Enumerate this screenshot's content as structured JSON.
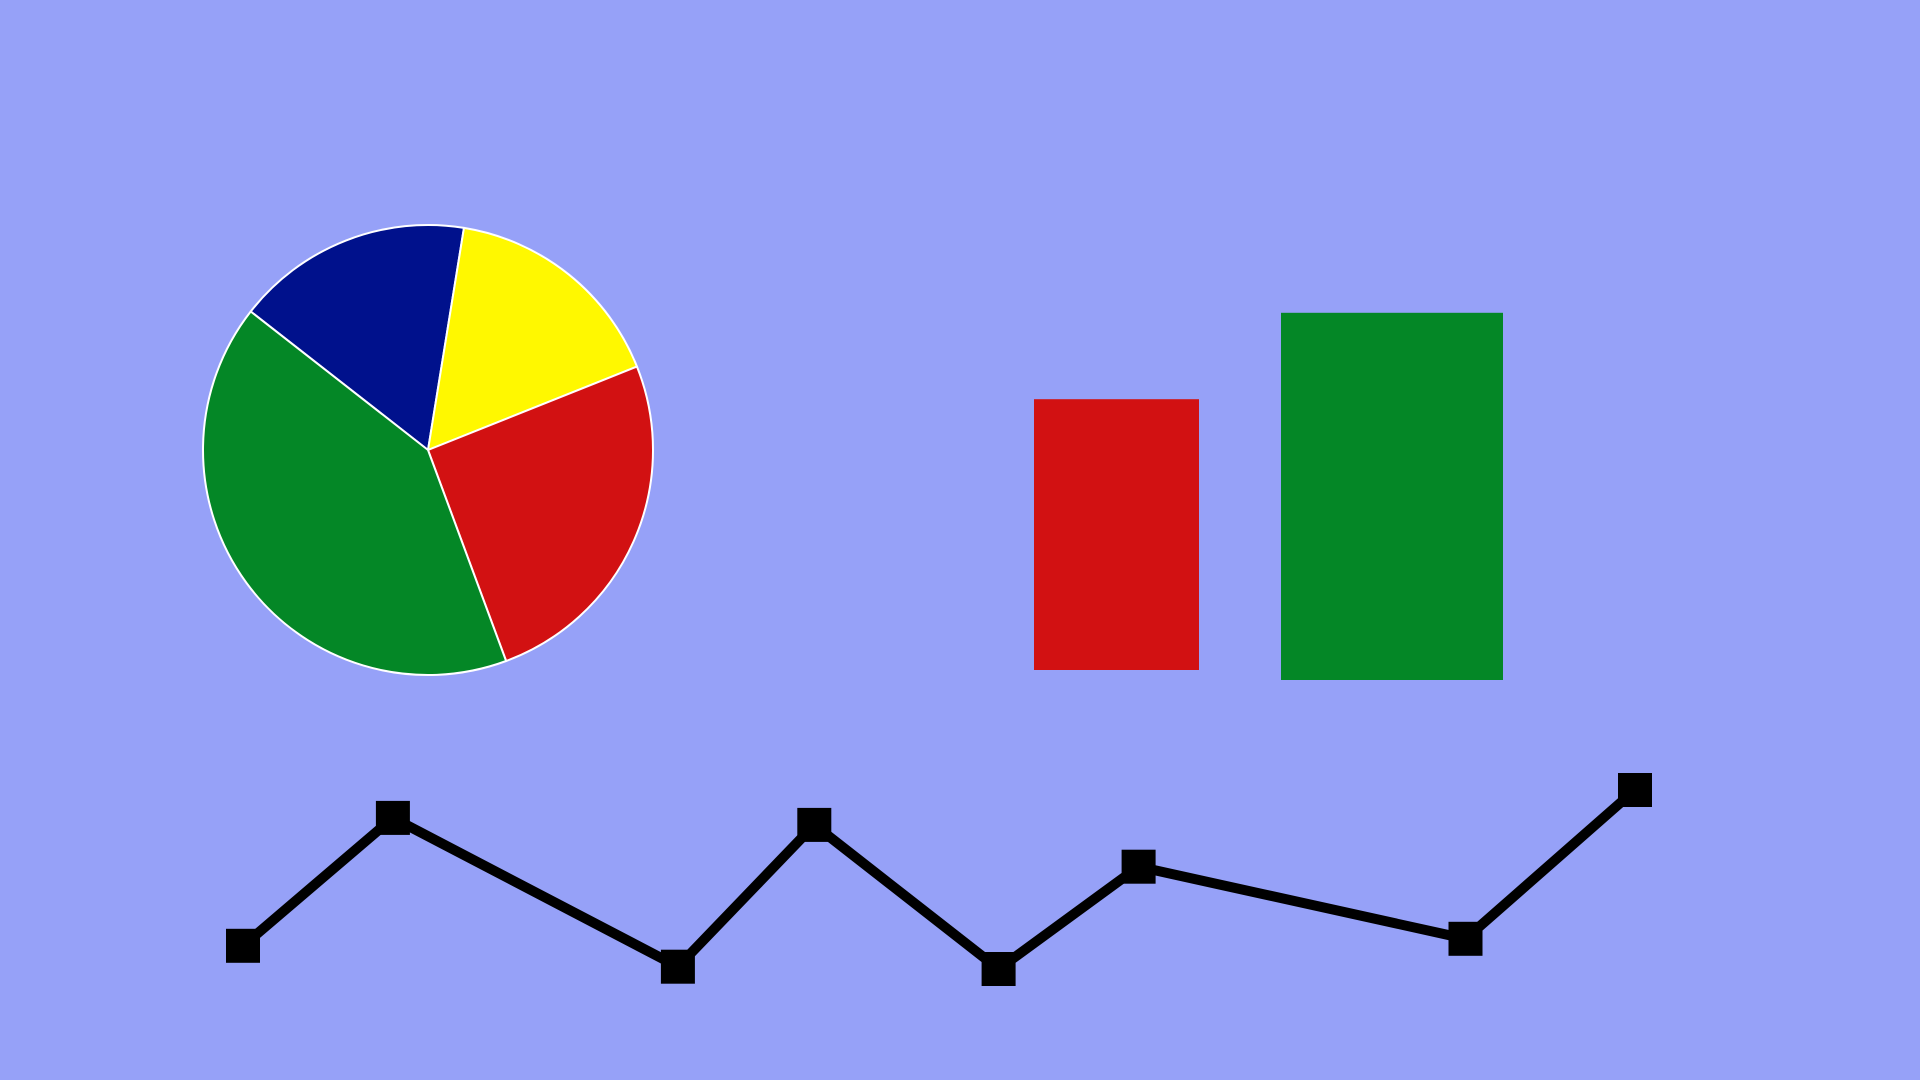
{
  "colors": {
    "background": "#96a1f8",
    "blue": "#00118c",
    "yellow": "#fff800",
    "red": "#d21112",
    "green": "#048726",
    "black": "#000000"
  },
  "chart_data": [
    {
      "type": "pie",
      "slices": [
        {
          "color": "#00118c",
          "value": 17.0
        },
        {
          "color": "#fff800",
          "value": 16.4
        },
        {
          "color": "#d21112",
          "value": 25.4
        },
        {
          "color": "#048726",
          "value": 41.2
        }
      ]
    },
    {
      "type": "bar",
      "categories": [
        "",
        ""
      ],
      "values": [
        2.22,
        3.01
      ],
      "colors": [
        "#d21112",
        "#048726"
      ],
      "ylim": [
        0,
        4
      ]
    },
    {
      "type": "line",
      "x": [
        1,
        2.22,
        4.54,
        5.65,
        7.15,
        8.29,
        10.95,
        12.33
      ],
      "y": [
        1.65,
        4.4,
        1.2,
        4.25,
        1.15,
        3.35,
        1.8,
        5.0
      ],
      "color": "#000000",
      "marker": "square"
    }
  ]
}
